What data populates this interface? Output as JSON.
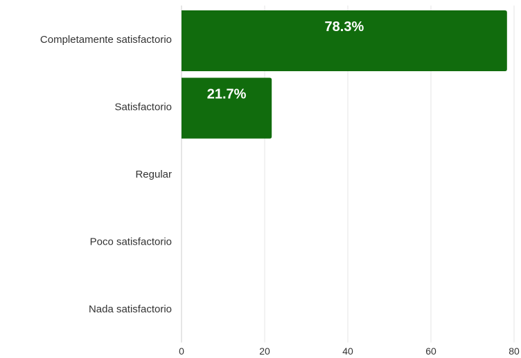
{
  "chart_data": {
    "type": "bar",
    "orientation": "horizontal",
    "categories": [
      "Completamente satisfactorio",
      "Satisfactorio",
      "Regular",
      "Poco satisfactorio",
      "Nada satisfactorio"
    ],
    "values": [
      78.3,
      21.7,
      0,
      0,
      0
    ],
    "data_labels": [
      "78.3%",
      "21.7%",
      "",
      "",
      ""
    ],
    "xlim": [
      0,
      80
    ],
    "xticks": [
      0,
      20,
      40,
      60,
      80
    ],
    "grid": true,
    "bar_color": "#116c0d",
    "label_color": "#ffffff"
  }
}
